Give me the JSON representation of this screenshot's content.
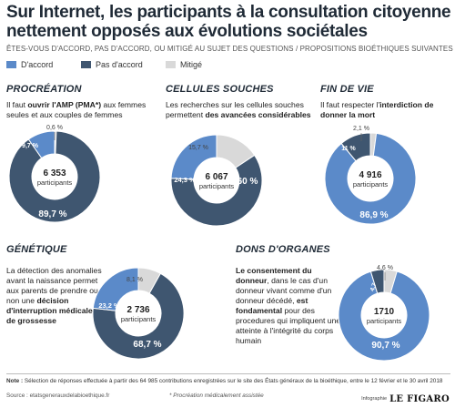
{
  "title": "Sur Internet, les participants à la consultation citoyenne nettement opposés aux évolutions sociétales",
  "question": "ÊTES-VOUS D'ACCORD, PAS D'ACCORD, OU MITIGÉ AU SUJET DES QUESTIONS / PROPOSITIONS BIOÉTHIQUES SUIVANTES :",
  "colors": {
    "accord": "#5b8ac9",
    "pas_accord": "#3f5670",
    "mitige": "#d9d9d9"
  },
  "legend": [
    {
      "key": "accord",
      "label": "D'accord"
    },
    {
      "key": "pas_accord",
      "label": "Pas d'accord"
    },
    {
      "key": "mitige",
      "label": "Mitigé"
    }
  ],
  "panels": [
    {
      "title": "PROCRÉATION",
      "text_html": "Il faut <b>ouvrir l'AMP (PMA*)</b> aux femmes seules et aux couples de femmes"
    },
    {
      "title": "CELLULES SOUCHES",
      "text_html": "Les recherches sur les cellules souches permettent <b>des avancées considérables</b>"
    },
    {
      "title": "FIN DE VIE",
      "text_html": "Il faut respecter l'<b>interdiction de donner la mort</b>"
    },
    {
      "title": "GÉNÉTIQUE",
      "text_html": "La détection des anomalies avant la naissance permet aux parents de prendre ou non une <b>décision d'interruption médicale de grossesse</b>"
    },
    {
      "title": "DONS D'ORGANES",
      "text_html": "<b>Le consentement du donneur</b>, dans le cas d'un donneur vivant comme d'un donneur décédé, <b>est fondamental</b> pour des procedures qui impliquent une atteinte à l'intégrité du corps humain"
    }
  ],
  "chart_data": [
    {
      "type": "pie",
      "title": "PROCRÉATION",
      "participants": "6 353",
      "participants_label": "participants",
      "categories": [
        "D'accord",
        "Pas d'accord",
        "Mitigé"
      ],
      "values": [
        9.7,
        89.7,
        0.6
      ],
      "labels": [
        "9,7 %",
        "89,7 %",
        "0,6 %"
      ]
    },
    {
      "type": "pie",
      "title": "CELLULES SOUCHES",
      "participants": "6 067",
      "participants_label": "participants",
      "categories": [
        "D'accord",
        "Pas d'accord",
        "Mitigé"
      ],
      "values": [
        24.3,
        60,
        15.7
      ],
      "labels": [
        "24,3 %",
        "60 %",
        "15,7 %"
      ]
    },
    {
      "type": "pie",
      "title": "FIN DE VIE",
      "participants": "4 916",
      "participants_label": "participants",
      "categories": [
        "D'accord",
        "Pas d'accord",
        "Mitigé"
      ],
      "values": [
        86.9,
        11,
        2.1
      ],
      "labels": [
        "86,9 %",
        "11 %",
        "2,1 %"
      ]
    },
    {
      "type": "pie",
      "title": "GÉNÉTIQUE",
      "participants": "2 736",
      "participants_label": "participants",
      "categories": [
        "D'accord",
        "Pas d'accord",
        "Mitigé"
      ],
      "values": [
        23.2,
        68.7,
        8.1
      ],
      "labels": [
        "23,2 %",
        "68,7 %",
        "8,1 %"
      ]
    },
    {
      "type": "pie",
      "title": "DONS D'ORGANES",
      "participants": "1710",
      "participants_label": "participants",
      "categories": [
        "D'accord",
        "Pas d'accord",
        "Mitigé"
      ],
      "values": [
        90.7,
        4.7,
        4.6
      ],
      "labels": [
        "90,7 %",
        "4,7",
        "4,6 %"
      ]
    }
  ],
  "footnote_label": "Note :",
  "footnote": "Sélection de réponses effectuée à partir des 64 985 contributions enregistrées sur le site des États généraux de la bioéthique, entre le 12 février et le 30 avril 2018",
  "source": "Source : etatsgenerauxdelabioethique.fr",
  "star_note": "* Procréation médicalement assistée",
  "credit_small": "Infographie",
  "credit_logo": "LE FIGARO"
}
